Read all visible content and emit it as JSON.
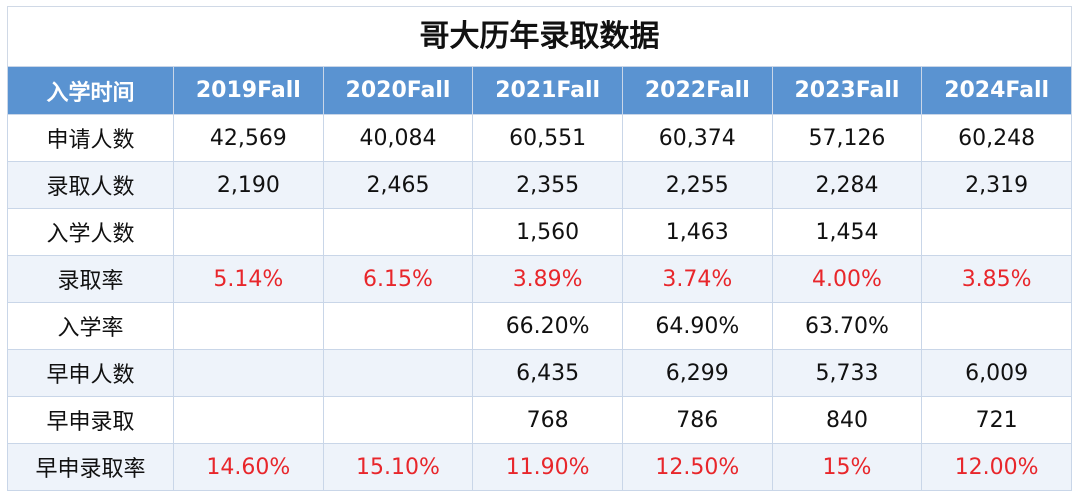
{
  "title": "哥大历年录取数据",
  "header": [
    "入学时间",
    "2019Fall",
    "2020Fall",
    "2021Fall",
    "2022Fall",
    "2023Fall",
    "2024Fall"
  ],
  "rows": [
    {
      "label": "申请人数",
      "red": false,
      "cells": [
        "42,569",
        "40,084",
        "60,551",
        "60,374",
        "57,126",
        "60,248"
      ]
    },
    {
      "label": "录取人数",
      "red": false,
      "cells": [
        "2,190",
        "2,465",
        "2,355",
        "2,255",
        "2,284",
        "2,319"
      ]
    },
    {
      "label": "入学人数",
      "red": false,
      "cells": [
        "",
        "",
        "1,560",
        "1,463",
        "1,454",
        ""
      ]
    },
    {
      "label": "录取率",
      "red": true,
      "cells": [
        "5.14%",
        "6.15%",
        "3.89%",
        "3.74%",
        "4.00%",
        "3.85%"
      ]
    },
    {
      "label": "入学率",
      "red": false,
      "cells": [
        "",
        "",
        "66.20%",
        "64.90%",
        "63.70%",
        ""
      ]
    },
    {
      "label": "早申人数",
      "red": false,
      "cells": [
        "",
        "",
        "6,435",
        "6,299",
        "5,733",
        "6,009"
      ]
    },
    {
      "label": "早申录取",
      "red": false,
      "cells": [
        "",
        "",
        "768",
        "786",
        "840",
        "721"
      ]
    },
    {
      "label": "早申录取率",
      "red": true,
      "cells": [
        "14.60%",
        "15.10%",
        "11.90%",
        "12.50%",
        "15%",
        "12.00%"
      ]
    }
  ],
  "colors": {
    "header_bg": "#5a93d1",
    "alt_row_bg": "#eef3fa",
    "highlight_text": "#e8262b"
  }
}
